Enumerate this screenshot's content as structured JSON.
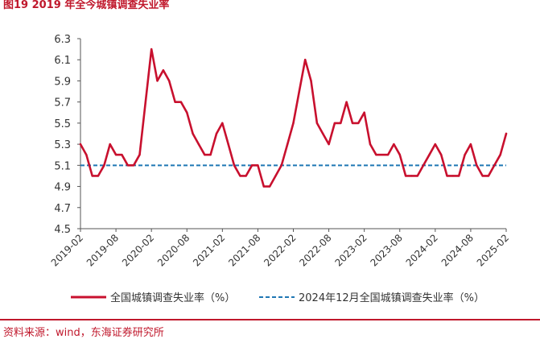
{
  "figure": {
    "title": "图19  2019 年全今城镇调查失业率",
    "source": "资料来源：wind，东海证券研究所"
  },
  "chart_data": {
    "type": "line",
    "ylim": [
      4.5,
      6.3
    ],
    "yticks": [
      4.5,
      4.7,
      4.9,
      5.1,
      5.3,
      5.5,
      5.7,
      5.9,
      6.1,
      6.3
    ],
    "x_start": "2019-02",
    "x_end": "2025-02",
    "xticks": [
      "2019-02",
      "2019-08",
      "2020-02",
      "2020-08",
      "2021-02",
      "2021-08",
      "2022-02",
      "2022-08",
      "2023-02",
      "2023-08",
      "2024-02",
      "2024-08",
      "2025-02"
    ],
    "grid": false,
    "legend_position": "bottom",
    "colors": {
      "series": "#c8102e",
      "reference": "#1f77b4",
      "axis": "#555555"
    },
    "series": [
      {
        "name": "全国城镇调查失业率（%）",
        "x": [
          "2019-02",
          "2019-03",
          "2019-04",
          "2019-05",
          "2019-06",
          "2019-07",
          "2019-08",
          "2019-09",
          "2019-10",
          "2019-11",
          "2019-12",
          "2020-02",
          "2020-03",
          "2020-04",
          "2020-05",
          "2020-06",
          "2020-07",
          "2020-08",
          "2020-09",
          "2020-10",
          "2020-11",
          "2020-12",
          "2021-01",
          "2021-02",
          "2021-03",
          "2021-04",
          "2021-05",
          "2021-06",
          "2021-07",
          "2021-08",
          "2021-09",
          "2021-10",
          "2021-11",
          "2021-12",
          "2022-01",
          "2022-02",
          "2022-03",
          "2022-04",
          "2022-05",
          "2022-06",
          "2022-07",
          "2022-08",
          "2022-09",
          "2022-10",
          "2022-11",
          "2022-12",
          "2023-01",
          "2023-02",
          "2023-03",
          "2023-04",
          "2023-05",
          "2023-06",
          "2023-07",
          "2023-08",
          "2023-09",
          "2023-10",
          "2023-11",
          "2023-12",
          "2024-01",
          "2024-02",
          "2024-03",
          "2024-04",
          "2024-05",
          "2024-06",
          "2024-07",
          "2024-08",
          "2024-09",
          "2024-10",
          "2024-11",
          "2024-12",
          "2025-01",
          "2025-02"
        ],
        "values": [
          5.3,
          5.2,
          5.0,
          5.0,
          5.1,
          5.3,
          5.2,
          5.2,
          5.1,
          5.1,
          5.2,
          6.2,
          5.9,
          6.0,
          5.9,
          5.7,
          5.7,
          5.6,
          5.4,
          5.3,
          5.2,
          5.2,
          5.4,
          5.5,
          5.3,
          5.1,
          5.0,
          5.0,
          5.1,
          5.1,
          4.9,
          4.9,
          5.0,
          5.1,
          5.3,
          5.5,
          5.8,
          6.1,
          5.9,
          5.5,
          5.4,
          5.3,
          5.5,
          5.5,
          5.7,
          5.5,
          5.5,
          5.6,
          5.3,
          5.2,
          5.2,
          5.2,
          5.3,
          5.2,
          5.0,
          5.0,
          5.0,
          5.1,
          5.2,
          5.3,
          5.2,
          5.0,
          5.0,
          5.0,
          5.2,
          5.3,
          5.1,
          5.0,
          5.0,
          5.1,
          5.2,
          5.4
        ]
      },
      {
        "name": "2024年12月全国城镇调查失业率（%）",
        "style": "dashed",
        "value": 5.1
      }
    ]
  }
}
